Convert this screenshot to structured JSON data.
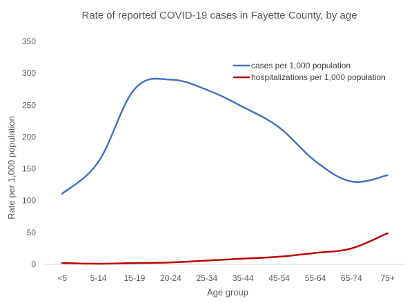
{
  "chart_data": {
    "type": "line",
    "title": "Rate of reported COVID-19 cases in Fayette County, by age",
    "xlabel": "Age group",
    "ylabel": "Rate per 1,000 population",
    "categories": [
      "<5",
      "5-14",
      "15-19",
      "20-24",
      "25-34",
      "35-44",
      "45-54",
      "55-64",
      "65-74",
      "75+"
    ],
    "ylim": [
      0,
      350
    ],
    "yticks": [
      0,
      50,
      100,
      150,
      200,
      250,
      300,
      350
    ],
    "grid": false,
    "legend_position": "top-right",
    "series": [
      {
        "name": "cases per 1,000 population",
        "color": "#4472c4",
        "values": [
          111,
          161,
          275,
          290,
          274,
          247,
          215,
          162,
          130,
          140
        ]
      },
      {
        "name": "hospitalizations per 1,000 population",
        "color": "#c00000",
        "values": [
          2,
          1,
          2,
          3,
          6,
          9,
          12,
          18,
          25,
          49
        ]
      }
    ]
  }
}
